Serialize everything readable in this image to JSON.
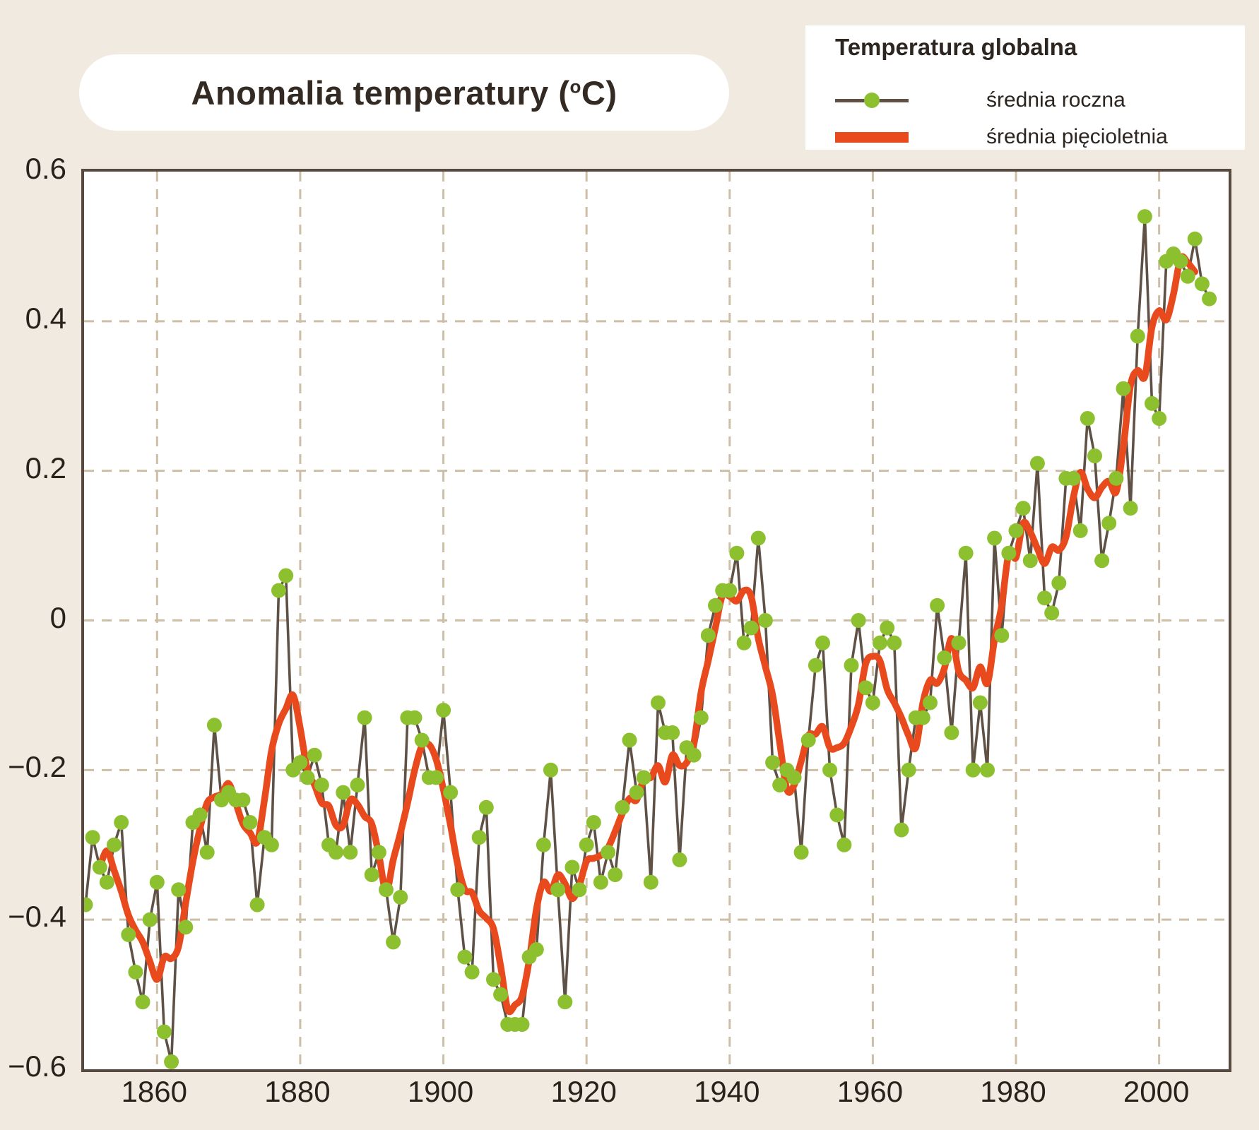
{
  "title": {
    "prefix": "Anomalia temperatury (",
    "sup_o": "o",
    "suffix": "C)"
  },
  "legend": {
    "title": "Temperatura globalna",
    "items": [
      {
        "label": "średnia roczna",
        "swatch": "line-with-dot"
      },
      {
        "label": "średnia pięcioletnia",
        "swatch": "thick-bar"
      }
    ]
  },
  "axes": {
    "y_tick_labels": [
      "0.6",
      "0.4",
      "0.2",
      "0",
      "−0.2",
      "−0.4",
      "−0.6"
    ],
    "y_tick_values": [
      0.6,
      0.4,
      0.2,
      0,
      -0.2,
      -0.4,
      -0.6
    ],
    "x_tick_labels": [
      "1860",
      "1880",
      "1900",
      "1920",
      "1940",
      "1960",
      "1980",
      "2000"
    ],
    "x_tick_values": [
      1860,
      1880,
      1900,
      1920,
      1940,
      1960,
      1980,
      2000
    ]
  },
  "colors": {
    "background": "#f0eae1",
    "panel": "#ffffff",
    "plot_border": "#584a3e",
    "grid": "#cdbfa6",
    "annual_line": "#5f5146",
    "annual_dot": "#8cc02f",
    "five_year_line": "#e8491d",
    "text": "#2d2620"
  },
  "chart_data": {
    "type": "line",
    "title": "Anomalia temperatury (°C)",
    "legend_position": "top-right",
    "grid": "dashed",
    "xlim": [
      1849.9,
      2009.9
    ],
    "ylim": [
      -0.6,
      0.6
    ],
    "series": [
      {
        "name": "średnia roczna",
        "style": "dark line with green dots",
        "start_year": 1850,
        "end_year": 2007,
        "values": [
          -0.38,
          -0.29,
          -0.33,
          -0.35,
          -0.3,
          -0.27,
          -0.42,
          -0.47,
          -0.51,
          -0.4,
          -0.35,
          -0.55,
          -0.59,
          -0.36,
          -0.41,
          -0.27,
          -0.26,
          -0.31,
          -0.14,
          -0.24,
          -0.23,
          -0.24,
          -0.24,
          -0.27,
          -0.38,
          -0.29,
          -0.3,
          0.04,
          0.06,
          -0.2,
          -0.19,
          -0.21,
          -0.18,
          -0.22,
          -0.3,
          -0.31,
          -0.23,
          -0.31,
          -0.22,
          -0.13,
          -0.34,
          -0.31,
          -0.36,
          -0.43,
          -0.37,
          -0.13,
          -0.13,
          -0.16,
          -0.21,
          -0.21,
          -0.12,
          -0.23,
          -0.36,
          -0.45,
          -0.47,
          -0.29,
          -0.25,
          -0.48,
          -0.5,
          -0.54,
          -0.54,
          -0.54,
          -0.45,
          -0.44,
          -0.3,
          -0.2,
          -0.36,
          -0.51,
          -0.33,
          -0.36,
          -0.3,
          -0.27,
          -0.35,
          -0.31,
          -0.34,
          -0.25,
          -0.16,
          -0.23,
          -0.21,
          -0.35,
          -0.11,
          -0.15,
          -0.15,
          -0.32,
          -0.17,
          -0.18,
          -0.13,
          -0.02,
          0.02,
          0.04,
          0.04,
          0.09,
          -0.03,
          -0.01,
          0.11,
          0.0,
          -0.19,
          -0.22,
          -0.2,
          -0.21,
          -0.31,
          -0.16,
          -0.06,
          -0.03,
          -0.2,
          -0.26,
          -0.3,
          -0.06,
          0.0,
          -0.09,
          -0.11,
          -0.03,
          -0.01,
          -0.03,
          -0.28,
          -0.2,
          -0.13,
          -0.13,
          -0.11,
          0.02,
          -0.05,
          -0.15,
          -0.03,
          0.09,
          -0.2,
          -0.11,
          -0.2,
          0.11,
          -0.02,
          0.09,
          0.12,
          0.15,
          0.08,
          0.21,
          0.03,
          0.01,
          0.05,
          0.19,
          0.19,
          0.12,
          0.27,
          0.22,
          0.08,
          0.13,
          0.19,
          0.31,
          0.15,
          0.38,
          0.54,
          0.29,
          0.27,
          0.48,
          0.49,
          0.48,
          0.46,
          0.51,
          0.45,
          0.43
        ]
      },
      {
        "name": "średnia pięcioletnia",
        "style": "thick orange smooth line",
        "derived": "5-year centered running mean computed from annual values, plotted 1852-2005"
      }
    ]
  }
}
